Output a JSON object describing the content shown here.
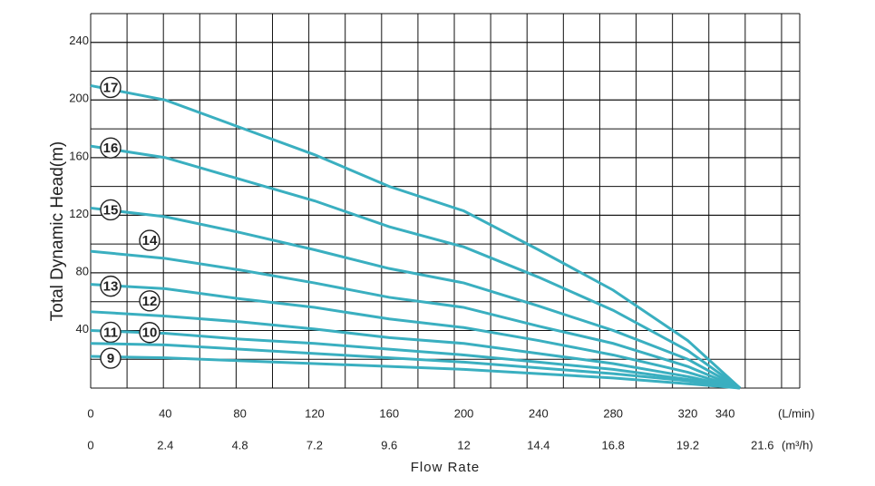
{
  "chart_data": {
    "type": "line",
    "ylabel": "Total Dynamic Head(m)",
    "xlabel": "Flow Rate",
    "x_unit": "(L/min)",
    "x2_unit": "(m³/h)",
    "x": [
      0,
      40,
      80,
      120,
      160,
      200,
      240,
      280,
      320,
      348
    ],
    "xlim": [
      0,
      380
    ],
    "xticks": [
      0,
      40,
      80,
      120,
      160,
      200,
      240,
      280,
      320,
      340
    ],
    "x2lim": [
      0,
      22.8
    ],
    "x2ticks": [
      0,
      2.4,
      4.8,
      7.2,
      9.6,
      12,
      14.4,
      16.8,
      19.2,
      21.6
    ],
    "ylim": [
      0,
      260
    ],
    "yticks": [
      0,
      40,
      80,
      120,
      160,
      200,
      240
    ],
    "grid": true,
    "series": [
      {
        "name": "17",
        "color": "#3aafc0",
        "values": [
          210,
          200,
          181,
          162,
          140,
          123,
          96,
          68,
          33,
          0
        ]
      },
      {
        "name": "16",
        "color": "#3aafc0",
        "values": [
          168,
          160,
          145,
          130,
          112,
          98,
          77,
          54,
          26,
          0
        ]
      },
      {
        "name": "15",
        "color": "#3aafc0",
        "values": [
          125,
          119,
          108,
          96,
          83,
          73,
          57,
          40,
          20,
          0
        ]
      },
      {
        "name": "14",
        "color": "#3aafc0",
        "values": [
          95,
          90,
          82,
          73,
          63,
          56,
          43,
          31,
          15,
          0
        ]
      },
      {
        "name": "13",
        "color": "#3aafc0",
        "values": [
          72,
          69,
          62,
          56,
          48,
          42,
          33,
          23,
          11,
          0
        ]
      },
      {
        "name": "12",
        "color": "#3aafc0",
        "values": [
          53,
          50,
          46,
          41,
          35,
          31,
          24,
          17,
          8,
          0
        ]
      },
      {
        "name": "11",
        "color": "#3aafc0",
        "values": [
          40,
          38,
          34,
          31,
          27,
          23,
          18,
          13,
          6,
          0
        ]
      },
      {
        "name": "10",
        "color": "#3aafc0",
        "values": [
          31,
          30,
          27,
          24,
          21,
          18,
          14,
          10,
          5,
          0
        ]
      },
      {
        "name": "9",
        "color": "#3aafc0",
        "values": [
          22,
          21,
          19,
          17,
          15,
          13,
          10,
          7,
          3,
          0
        ]
      }
    ]
  }
}
